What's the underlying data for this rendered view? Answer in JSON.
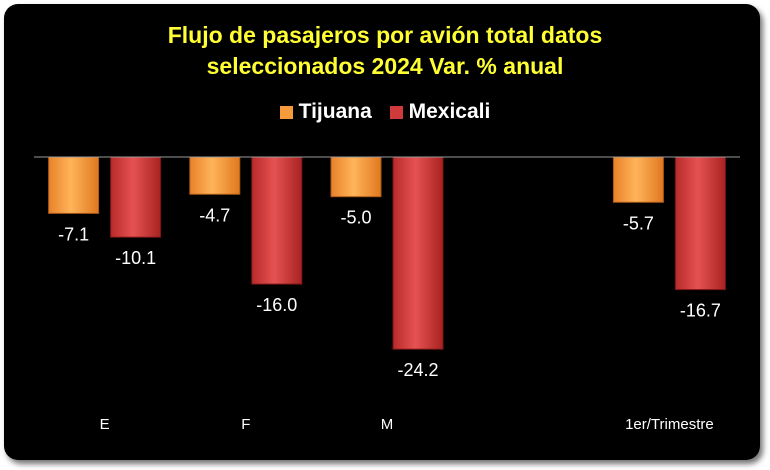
{
  "chart_data": {
    "type": "bar",
    "title": "Flujo de pasajeros por avión total datos seleccionados 2024 Var. % anual",
    "title_lines": [
      "Flujo de pasajeros por avión total datos",
      "seleccionados 2024 Var. %  anual"
    ],
    "categories": [
      "E",
      "F",
      "M",
      "",
      "1er/Trimestre"
    ],
    "series": [
      {
        "name": "Tijuana",
        "color": "#f79a3c",
        "values": [
          -7.1,
          -4.7,
          -5.0,
          null,
          -5.7
        ],
        "labels": [
          "-7.1",
          "-4.7",
          "-5.0",
          "",
          "-5.7"
        ]
      },
      {
        "name": "Mexicali",
        "color": "#cf3b3b",
        "values": [
          -10.1,
          -16.0,
          -24.2,
          null,
          -16.7
        ],
        "labels": [
          "-10.1",
          "-16.0",
          "-24.2",
          "",
          "-16.7"
        ]
      }
    ],
    "ylim": [
      -34,
      0
    ],
    "grid": false,
    "legend_position": "top-center",
    "data_labels": true,
    "colors": {
      "background": "#000000",
      "title": "#ffff33",
      "text": "#ffffff",
      "axis": "#9a9a9a"
    }
  }
}
